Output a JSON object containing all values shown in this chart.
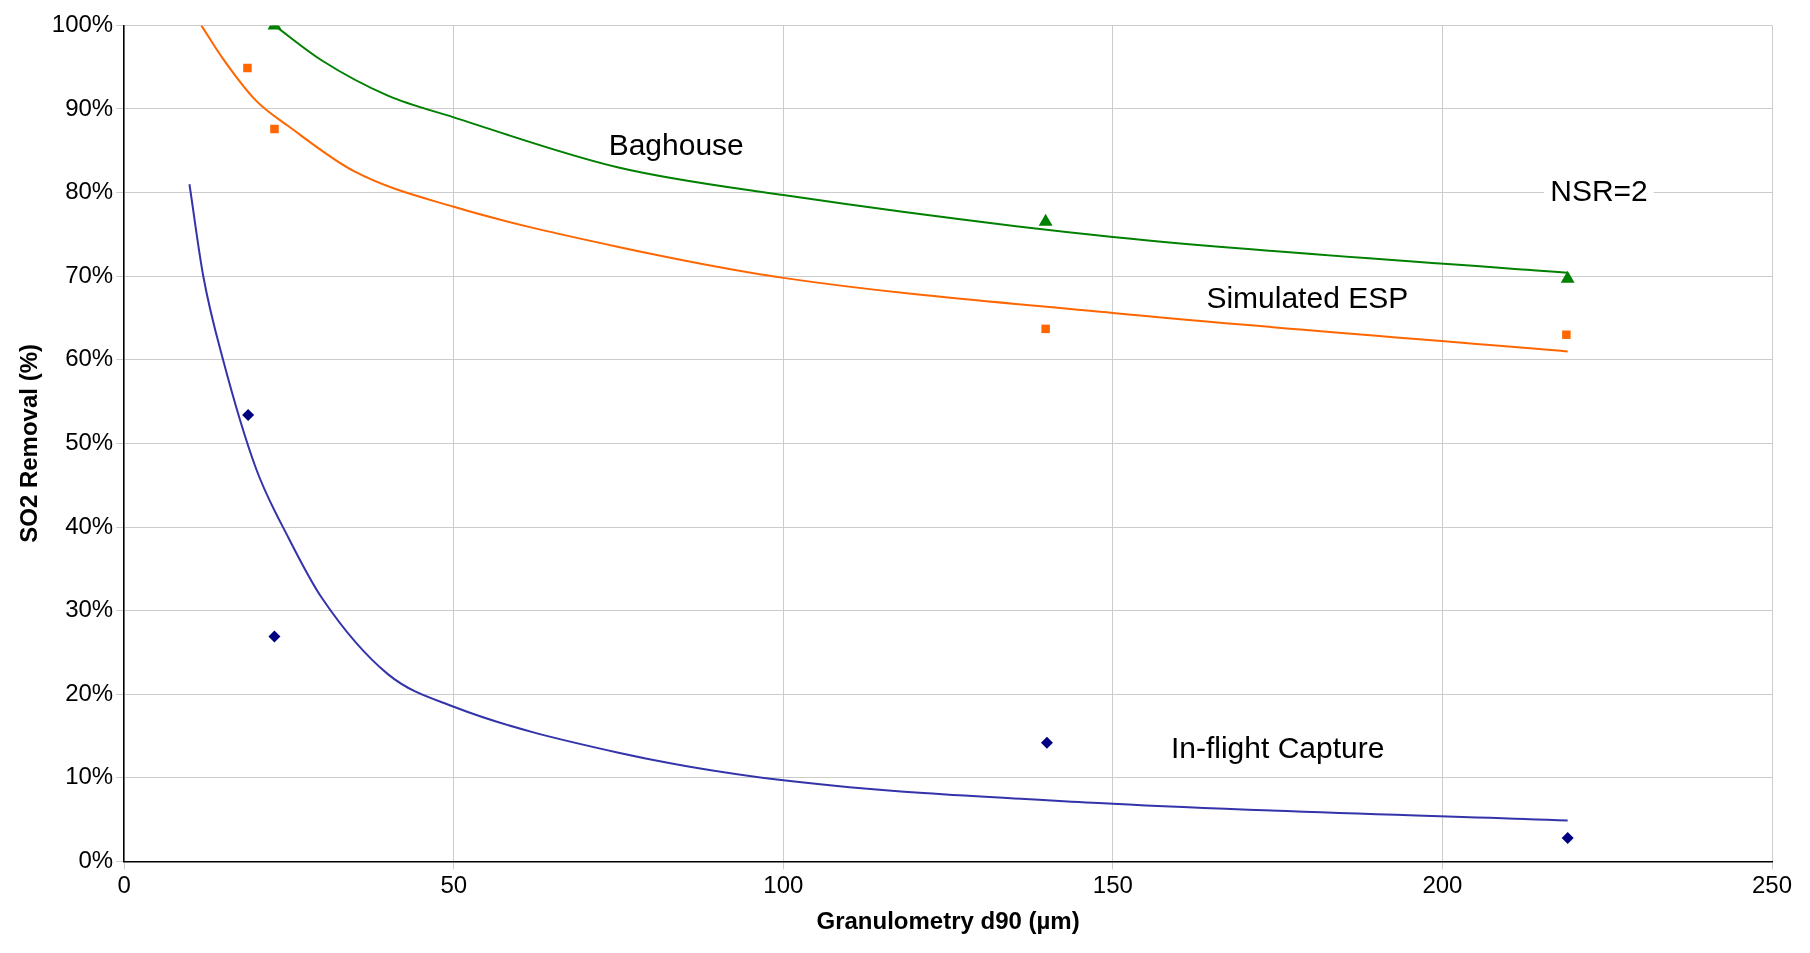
{
  "chart_data": {
    "type": "scatter",
    "xlabel": "Granulometry d90 (µm)",
    "ylabel": "SO2 Removal (%)",
    "xlim": [
      0,
      250
    ],
    "xticks": [
      0,
      50,
      100,
      150,
      200,
      250
    ],
    "ylim": [
      0,
      100
    ],
    "yticks": [
      {
        "value": 0,
        "label": "0%"
      },
      {
        "value": 10,
        "label": "10%"
      },
      {
        "value": 20,
        "label": "20%"
      },
      {
        "value": 30,
        "label": "30%"
      },
      {
        "value": 40,
        "label": "40%"
      },
      {
        "value": 50,
        "label": "50%"
      },
      {
        "value": 60,
        "label": "60%"
      },
      {
        "value": 70,
        "label": "70%"
      },
      {
        "value": 80,
        "label": "80%"
      },
      {
        "value": 90,
        "label": "90%"
      },
      {
        "value": 100,
        "label": "100%"
      }
    ],
    "grid": true,
    "legend": false,
    "series": [
      {
        "type": "line",
        "name": "Baghouse",
        "color": "#008000",
        "marker": "none",
        "x": [
          22.8,
          30,
          40,
          50,
          75,
          100,
          150,
          219
        ],
        "values": [
          100,
          95.8,
          91.6,
          89,
          83,
          79.7,
          74.7,
          70.4
        ]
      },
      {
        "type": "line",
        "name": "Simulated ESP",
        "color": "#ff6600",
        "marker": "none",
        "x": [
          11.7,
          15,
          20,
          25,
          35,
          50,
          75,
          100,
          150,
          219
        ],
        "values": [
          100,
          96,
          91,
          87.9,
          82.5,
          78.3,
          73.5,
          69.8,
          65.6,
          61
        ]
      },
      {
        "type": "line",
        "name": "In-flight Capture",
        "color": "#3333aa",
        "marker": "none",
        "x": [
          9.9,
          12,
          15,
          20,
          25,
          30,
          40,
          50,
          75,
          100,
          150,
          219
        ],
        "values": [
          81,
          70,
          60,
          47,
          38.6,
          31.5,
          22.4,
          18.5,
          13,
          9.7,
          6.9,
          4.9
        ]
      },
      {
        "type": "scatter",
        "color": "#008000",
        "marker": "triangle",
        "x": [
          22.8,
          139.8,
          219
        ],
        "values": [
          100,
          76.5,
          69.7
        ]
      },
      {
        "type": "scatter",
        "color": "#ff6600",
        "marker": "square",
        "x": [
          18.7,
          22.8,
          139.8,
          218.8
        ],
        "values": [
          94.9,
          87.6,
          63.7,
          63
        ]
      },
      {
        "type": "scatter",
        "color": "#000080",
        "marker": "diamond",
        "x": [
          18.8,
          22.8,
          140,
          219
        ],
        "values": [
          53.4,
          26.9,
          14.2,
          2.8
        ]
      }
    ],
    "annotations": [
      "NSR=2"
    ]
  }
}
